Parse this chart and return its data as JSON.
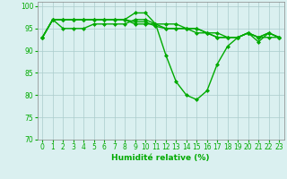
{
  "title": "",
  "xlabel": "Humidité relative (%)",
  "ylabel": "",
  "background_color": "#daf0f0",
  "grid_color": "#aacccc",
  "line_color": "#00aa00",
  "marker": "D",
  "marker_size": 2.0,
  "linewidth": 1.0,
  "ylim": [
    70,
    101
  ],
  "yticks": [
    70,
    75,
    80,
    85,
    90,
    95,
    100
  ],
  "xlim": [
    -0.5,
    23.5
  ],
  "xticks": [
    0,
    1,
    2,
    3,
    4,
    5,
    6,
    7,
    8,
    9,
    10,
    11,
    12,
    13,
    14,
    15,
    16,
    17,
    18,
    19,
    20,
    21,
    22,
    23
  ],
  "tick_fontsize": 5.5,
  "xlabel_fontsize": 6.5,
  "lines": [
    [
      93,
      97,
      97,
      97,
      97,
      97,
      97,
      97,
      97,
      98.5,
      98.5,
      96,
      89,
      83,
      80,
      79,
      81,
      87,
      91,
      93,
      94,
      92,
      94,
      93
    ],
    [
      93,
      97,
      95,
      95,
      95,
      96,
      96,
      96,
      96,
      97,
      97,
      96,
      96,
      96,
      95,
      95,
      94,
      94,
      93,
      93,
      94,
      93,
      94,
      93
    ],
    [
      93,
      97,
      97,
      97,
      97,
      97,
      97,
      97,
      97,
      96,
      96,
      96,
      95,
      95,
      95,
      95,
      94,
      93,
      93,
      93,
      94,
      93,
      93,
      93
    ],
    [
      93,
      97,
      97,
      97,
      97,
      97,
      97,
      97,
      97,
      96.5,
      96.5,
      95.5,
      95,
      95,
      95,
      94,
      94,
      93,
      93,
      93,
      94,
      93,
      94,
      93
    ]
  ]
}
